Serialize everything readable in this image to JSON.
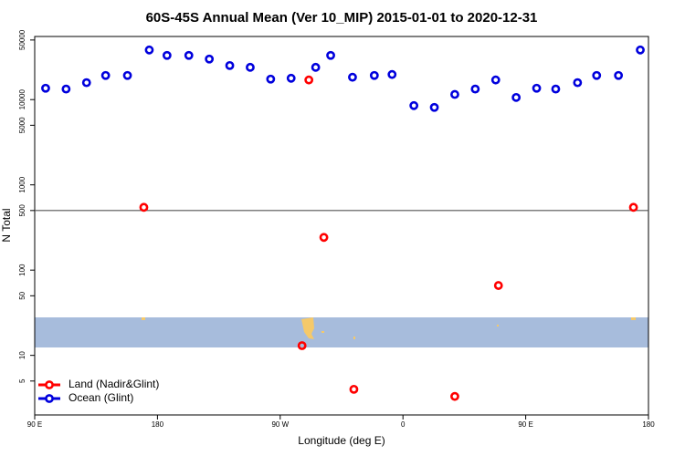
{
  "chart_data": {
    "type": "scatter",
    "title": "60S-45S Annual Mean (Ver 10_MIP)   2015-01-01 to 2020-12-31",
    "x_label": "Longitude (deg E)",
    "y_label": "N Total",
    "log_y": true,
    "legend": "lower left",
    "hline": 500,
    "xlim": [
      90,
      540
    ],
    "xticks": [
      {
        "value": 90,
        "label": "90 E"
      },
      180,
      {
        "value": 270,
        "label": "90 W"
      },
      {
        "value": 360,
        "label": "0"
      },
      {
        "value": 450,
        "label": "90 E"
      },
      {
        "value": 540,
        "label": "180"
      }
    ],
    "ylim": [
      2,
      55000
    ],
    "yticks": [
      5,
      10,
      50,
      100,
      500,
      1000,
      5000,
      10000,
      50000
    ],
    "series": [
      {
        "name": "Land (Nadir&Glint)",
        "color": "#ff0000",
        "x": [
          170,
          286,
          291,
          302,
          324,
          398,
          430,
          529
        ],
        "values": [
          545,
          13,
          17000,
          242,
          4,
          3.3,
          66,
          545
        ]
      },
      {
        "name": "Ocean (Glint)",
        "color": "#0000dd",
        "x": [
          98,
          113,
          128,
          142,
          158,
          174,
          187,
          203,
          218,
          233,
          248,
          263,
          278,
          296,
          307,
          323,
          339,
          352,
          368,
          383,
          398,
          413,
          428,
          443,
          458,
          472,
          488,
          502,
          518,
          534
        ],
        "values": [
          13600,
          13300,
          15800,
          19200,
          19200,
          38200,
          33000,
          33000,
          29900,
          25100,
          23900,
          17400,
          17800,
          23900,
          33000,
          18300,
          19200,
          19700,
          8500,
          8100,
          11500,
          13300,
          17000,
          10600,
          13600,
          13300,
          15800,
          19200,
          19200,
          38200
        ]
      }
    ]
  }
}
